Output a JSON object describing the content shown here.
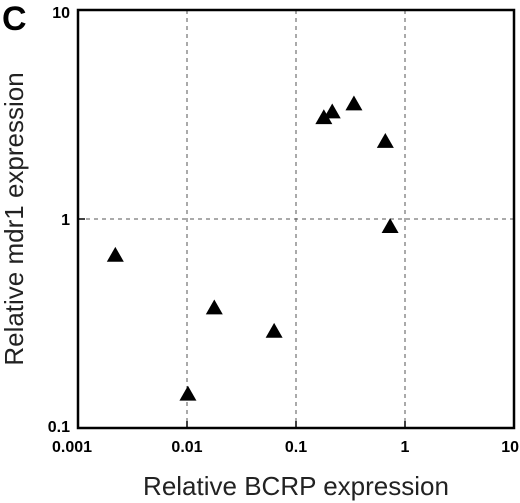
{
  "chart_data": {
    "type": "scatter",
    "panel_label": "C",
    "title": "",
    "xlabel": "Relative BCRP expression",
    "ylabel": "Relative mdr1 expression",
    "x_scale": "log",
    "y_scale": "log",
    "xlim": [
      0.001,
      10
    ],
    "ylim": [
      0.1,
      10
    ],
    "x_ticks": [
      "0.001",
      "0.01",
      "0.1",
      "1",
      "10"
    ],
    "y_ticks": [
      "0.1",
      "1",
      "10"
    ],
    "grid": "dashed, at decades",
    "marker": "filled triangle",
    "marker_color": "#000000",
    "points": [
      {
        "x": 0.0022,
        "y": 0.67
      },
      {
        "x": 0.0102,
        "y": 0.145
      },
      {
        "x": 0.0178,
        "y": 0.375
      },
      {
        "x": 0.063,
        "y": 0.29
      },
      {
        "x": 0.18,
        "y": 3.05
      },
      {
        "x": 0.215,
        "y": 3.25
      },
      {
        "x": 0.34,
        "y": 3.55
      },
      {
        "x": 0.66,
        "y": 2.35
      },
      {
        "x": 0.73,
        "y": 0.92
      }
    ]
  }
}
